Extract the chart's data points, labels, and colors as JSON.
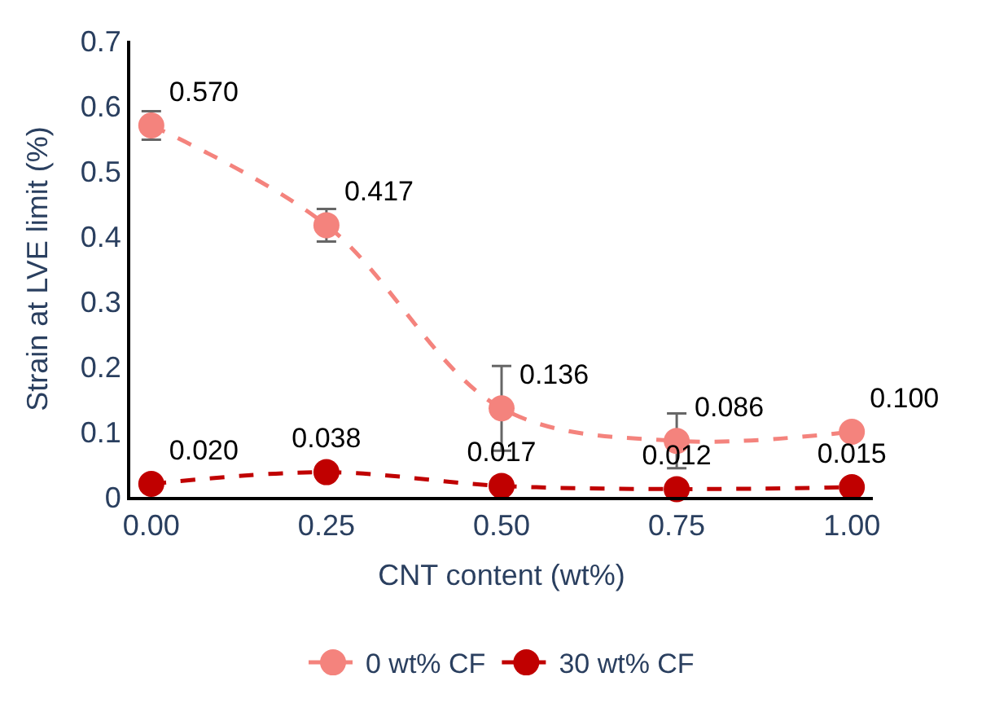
{
  "chart_data": {
    "type": "line",
    "xlabel": "CNT content (wt%)",
    "ylabel": "Strain at LVE limit (%)",
    "categories": [
      "0.00",
      "0.25",
      "0.50",
      "0.75",
      "1.00"
    ],
    "ylim": [
      0,
      0.7
    ],
    "yticks": [
      0,
      0.1,
      0.2,
      0.3,
      0.4,
      0.5,
      0.6,
      0.7
    ],
    "series": [
      {
        "name": "0 wt% CF",
        "color": "#f4837d",
        "values": [
          0.57,
          0.417,
          0.136,
          0.086,
          0.1
        ],
        "errors": [
          0.022,
          0.025,
          0.065,
          0.042,
          null
        ],
        "value_labels": [
          "0.570",
          "0.417",
          "0.136",
          "0.086",
          "0.100"
        ]
      },
      {
        "name": "30 wt% CF",
        "color": "#c00000",
        "values": [
          0.02,
          0.038,
          0.017,
          0.012,
          0.015
        ],
        "value_labels": [
          "0.020",
          "0.038",
          "0.017",
          "0.012",
          "0.015"
        ]
      }
    ],
    "marker": "circle",
    "line_style": "dashed",
    "legend": "bottom"
  }
}
